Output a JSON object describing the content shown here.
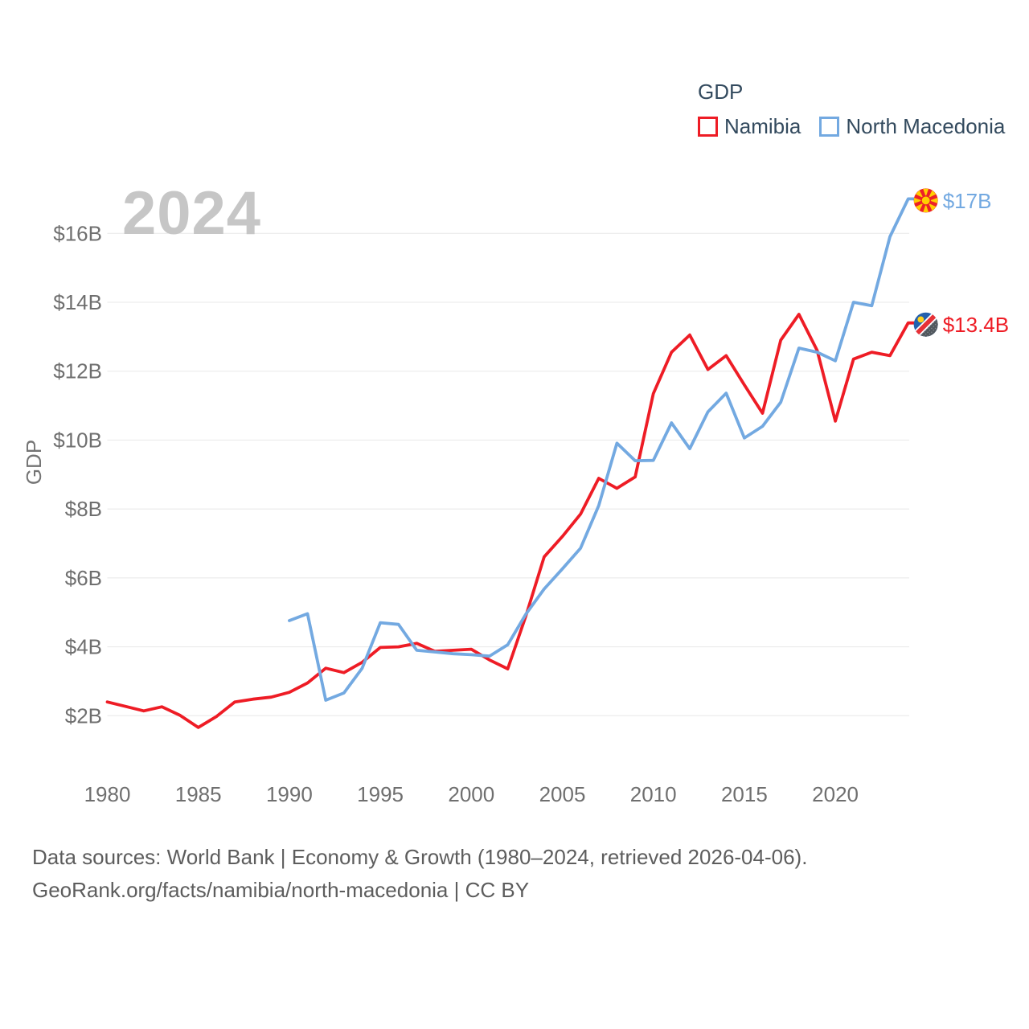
{
  "legend": {
    "title": "GDP",
    "items": [
      {
        "label": "Namibia",
        "color": "#ee1c25"
      },
      {
        "label": "North Macedonia",
        "color": "#73a9e1"
      }
    ]
  },
  "watermark_year": "2024",
  "footer": {
    "line1": "Data sources: World Bank | Economy & Growth (1980–2024, retrieved 2026-04-06).",
    "line2": "GeoRank.org/facts/namibia/north-macedonia | CC BY"
  },
  "chart_data": {
    "type": "line",
    "title": "GDP",
    "xlabel": "",
    "ylabel": "GDP",
    "ylim": [
      1.5,
      17.5
    ],
    "xlim": [
      1980,
      2024
    ],
    "grid": true,
    "legend_position": "top-right",
    "x_ticks": [
      1980,
      1985,
      1990,
      1995,
      2000,
      2005,
      2010,
      2015,
      2020
    ],
    "y_ticks": [
      {
        "value": 2,
        "label": "$2B"
      },
      {
        "value": 4,
        "label": "$4B"
      },
      {
        "value": 6,
        "label": "$6B"
      },
      {
        "value": 8,
        "label": "$8B"
      },
      {
        "value": 10,
        "label": "$10B"
      },
      {
        "value": 12,
        "label": "$12B"
      },
      {
        "value": 14,
        "label": "$14B"
      },
      {
        "value": 16,
        "label": "$16B"
      }
    ],
    "series": [
      {
        "name": "Namibia",
        "color": "#ee1c25",
        "flag": "namibia",
        "start_year": 1980,
        "end_year": 2024,
        "end_label": "$13.4B",
        "values": [
          2.4,
          2.27,
          2.14,
          2.26,
          2.01,
          1.66,
          1.98,
          2.4,
          2.48,
          2.54,
          2.68,
          2.95,
          3.38,
          3.25,
          3.55,
          3.98,
          4.0,
          4.1,
          3.87,
          3.9,
          3.93,
          3.62,
          3.36,
          4.9,
          6.61,
          7.2,
          7.85,
          8.89,
          8.6,
          8.93,
          11.35,
          12.55,
          13.05,
          12.05,
          12.45,
          11.6,
          10.78,
          12.9,
          13.65,
          12.6,
          10.55,
          12.35,
          12.55,
          12.45,
          13.4
        ]
      },
      {
        "name": "North Macedonia",
        "color": "#73a9e1",
        "flag": "north-macedonia",
        "start_year": 1990,
        "end_year": 2024,
        "end_label": "$17B",
        "values": [
          4.76,
          4.96,
          2.45,
          2.66,
          3.38,
          4.7,
          4.65,
          3.9,
          3.85,
          3.8,
          3.77,
          3.73,
          4.06,
          4.95,
          5.68,
          6.26,
          6.86,
          8.1,
          9.91,
          9.4,
          9.41,
          10.5,
          9.75,
          10.82,
          11.36,
          10.06,
          10.4,
          11.1,
          12.67,
          12.55,
          12.3,
          14.0,
          13.9,
          15.9,
          17.0
        ]
      }
    ]
  }
}
